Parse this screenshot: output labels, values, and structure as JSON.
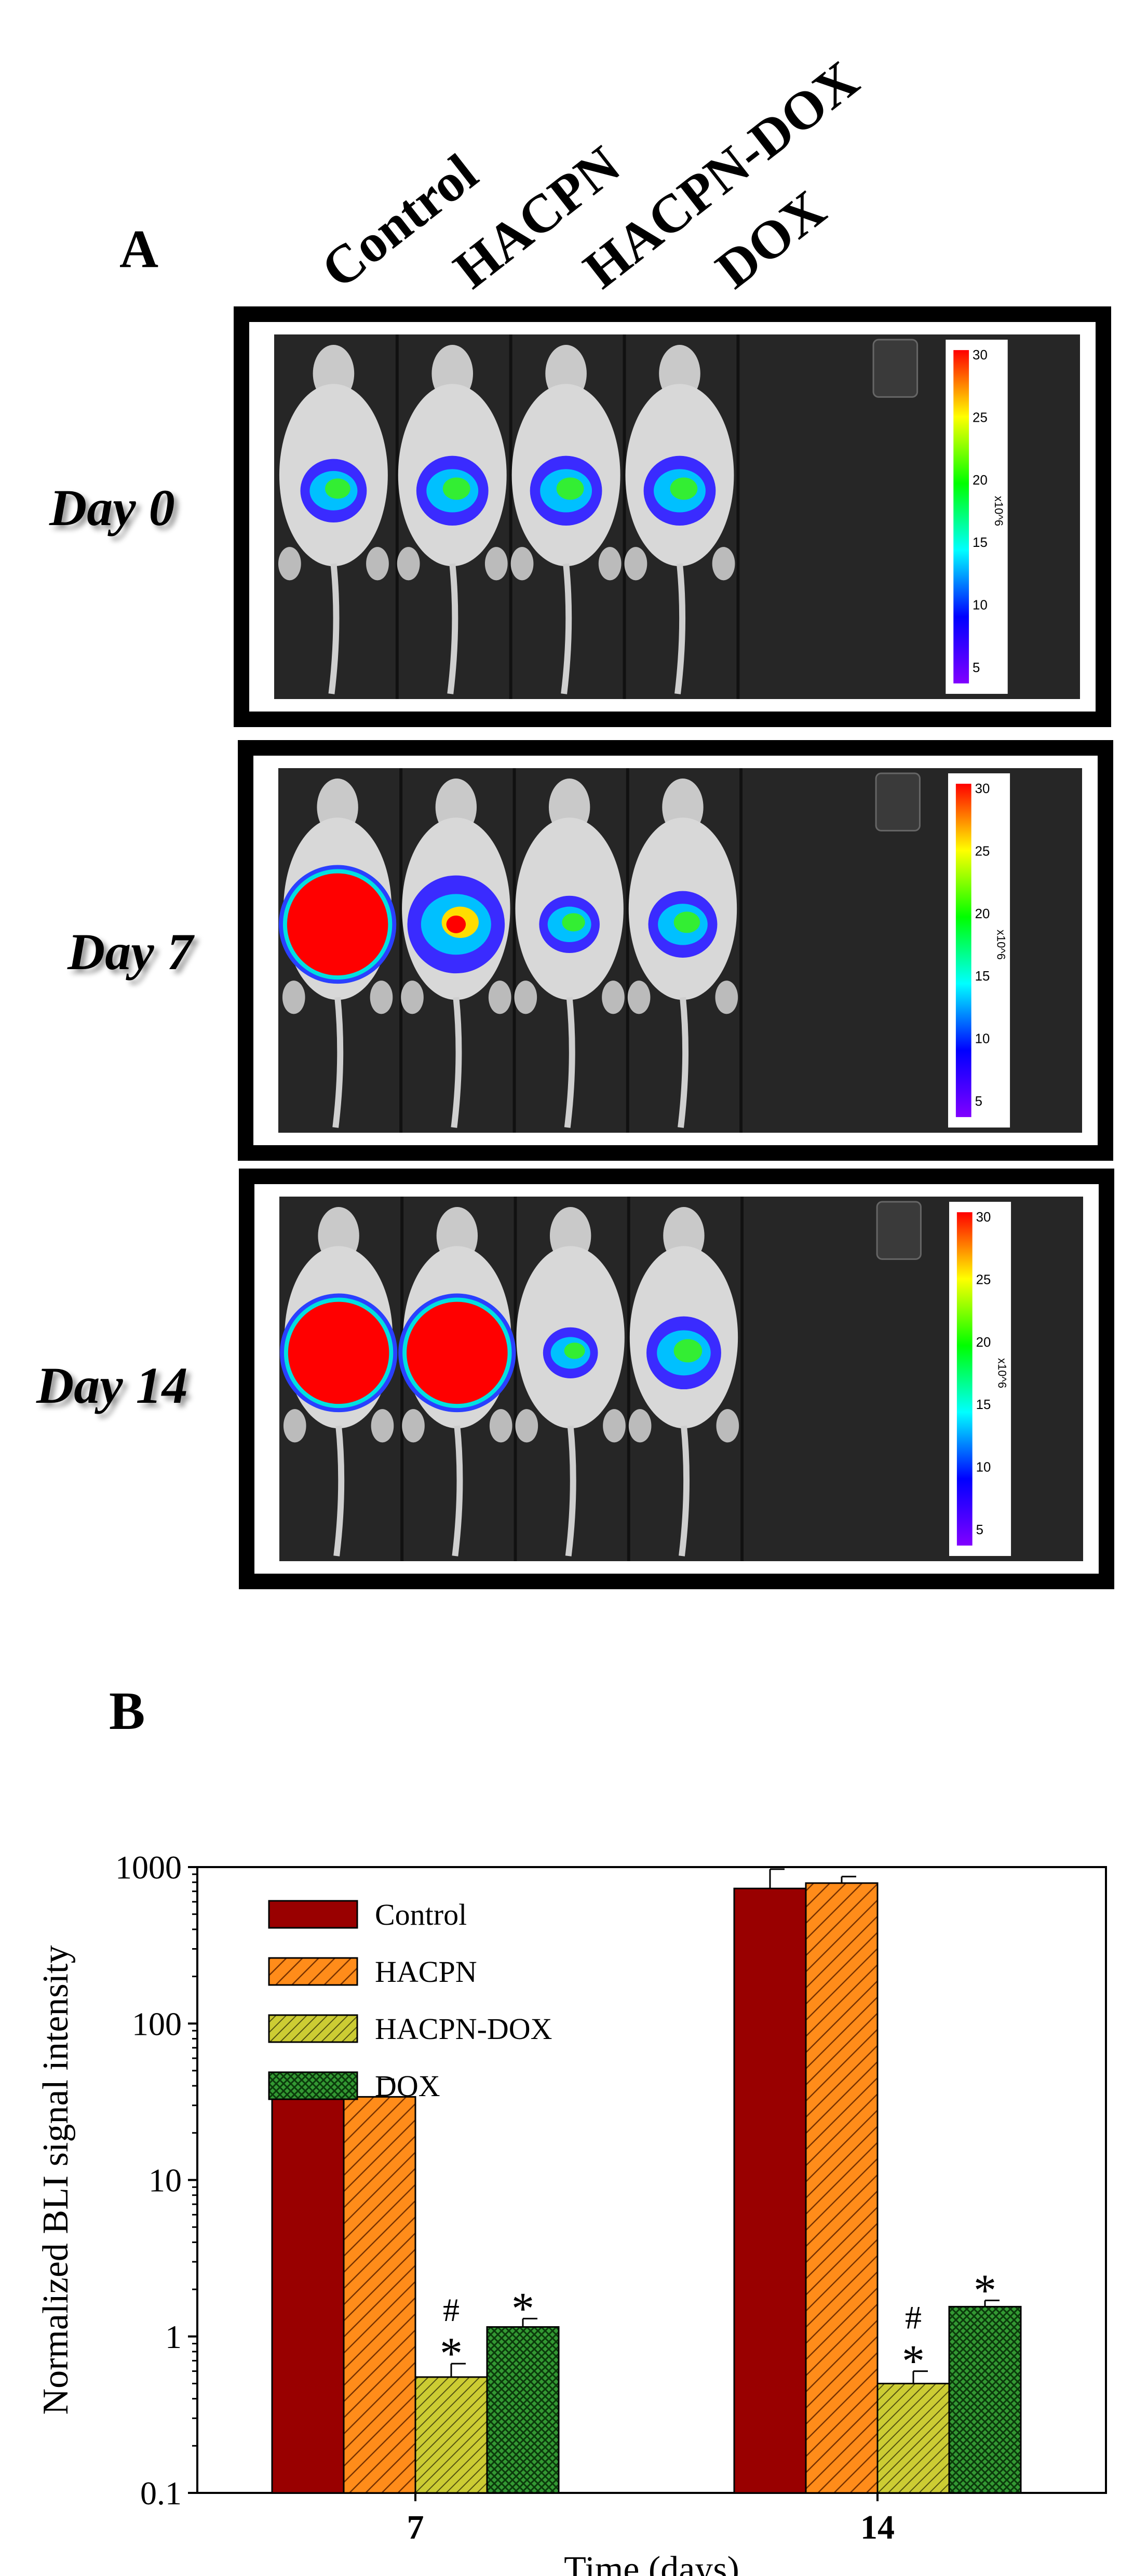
{
  "panel_a": {
    "letter": "A",
    "group_labels": [
      "Control",
      "HACPN",
      "HACPN-DOX",
      "DOX"
    ],
    "days": [
      {
        "label": "Day 0",
        "intensity": [
          0.35,
          0.45,
          0.45,
          0.45
        ]
      },
      {
        "label": "Day 7",
        "intensity": [
          1.0,
          0.9,
          0.25,
          0.4
        ]
      },
      {
        "label": "Day 14",
        "intensity": [
          1.0,
          1.0,
          0.15,
          0.5
        ]
      }
    ],
    "colorbar": {
      "ticks": [
        "30",
        "25",
        "20",
        "15",
        "10",
        "5"
      ],
      "unit": "x10^6",
      "colors": [
        "#ff0000",
        "#ffff00",
        "#00ff00",
        "#00ffff",
        "#0000ff",
        "#8000ff"
      ]
    }
  },
  "panel_b": {
    "letter": "B"
  },
  "chart_data": {
    "type": "bar",
    "xlabel": "Time (days)",
    "ylabel": "Normalized BLI signal intensity",
    "yscale": "log",
    "ylim": [
      0.1,
      1000
    ],
    "yticks": [
      "0.1",
      "1",
      "10",
      "100",
      "1000"
    ],
    "categories": [
      "7",
      "14"
    ],
    "legend_position": "top-left",
    "series": [
      {
        "name": "Control",
        "color": "#990000",
        "pattern": "solid",
        "values": [
          37,
          730
        ],
        "errors": [
          8,
          240
        ],
        "annotations": [
          "",
          ""
        ]
      },
      {
        "name": "HACPN",
        "color": "#ff8c1a",
        "pattern": "hatch",
        "values": [
          34,
          790
        ],
        "errors": [
          10,
          80
        ],
        "annotations": [
          "",
          ""
        ]
      },
      {
        "name": "HACPN-DOX",
        "color": "#cccc33",
        "pattern": "hatch-dense",
        "values": [
          0.55,
          0.5
        ],
        "errors": [
          0.12,
          0.1
        ],
        "annotations": [
          "#\n*",
          "#\n*"
        ]
      },
      {
        "name": "DOX",
        "color": "#339933",
        "pattern": "crosshatch",
        "values": [
          1.15,
          1.55
        ],
        "errors": [
          0.15,
          0.15
        ],
        "annotations": [
          "*",
          "*"
        ]
      }
    ]
  }
}
